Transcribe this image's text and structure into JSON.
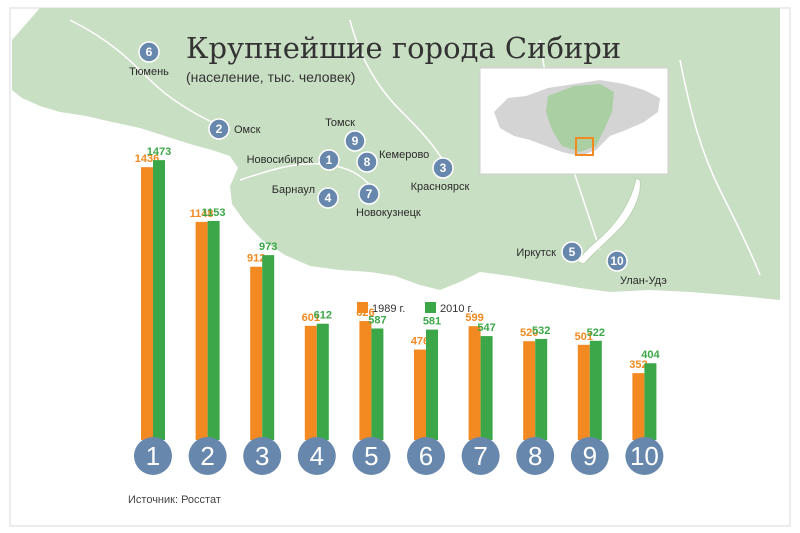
{
  "header": {
    "title": "Крупнейшие города Сибири",
    "subtitle": "(население, тыс. человек)"
  },
  "source": "Источник: Росстат",
  "colors": {
    "series_1989": "#f28a21",
    "series_2010": "#3ca748",
    "land": "#c9dfc3",
    "marker": "#6787ad",
    "water": "#ffffff"
  },
  "map": {
    "cities": [
      {
        "num": "6",
        "name": "Тюмень"
      },
      {
        "num": "2",
        "name": "Омск"
      },
      {
        "num": "1",
        "name": "Новосибирск"
      },
      {
        "num": "9",
        "name": "Томск"
      },
      {
        "num": "8",
        "name": "Кемерово"
      },
      {
        "num": "4",
        "name": "Барнаул"
      },
      {
        "num": "7",
        "name": "Новокузнецк"
      },
      {
        "num": "3",
        "name": "Красноярск"
      },
      {
        "num": "5",
        "name": "Иркутск"
      },
      {
        "num": "10",
        "name": "Улан-Удэ"
      }
    ]
  },
  "chart_data": {
    "type": "bar",
    "title": "Крупнейшие города Сибири",
    "subtitle": "(население, тыс. человек)",
    "categories": [
      "1",
      "2",
      "3",
      "4",
      "5",
      "6",
      "7",
      "8",
      "9",
      "10"
    ],
    "series": [
      {
        "name": "1989 г.",
        "values": [
          1436,
          1148,
          912,
          601,
          626,
          476,
          599,
          520,
          501,
          352
        ]
      },
      {
        "name": "2010 г.",
        "values": [
          1473,
          1153,
          973,
          612,
          587,
          581,
          547,
          532,
          522,
          404
        ]
      }
    ],
    "legend": "top-right",
    "grid": false
  }
}
